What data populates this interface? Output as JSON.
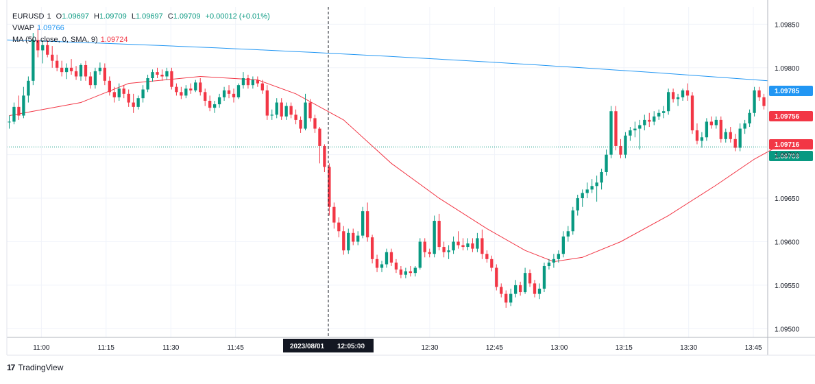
{
  "legend": {
    "symbol": "EURUSD",
    "interval": "1",
    "ohlc": {
      "o_label": "O",
      "o": "1.09697",
      "h_label": "H",
      "h": "1.09709",
      "l_label": "L",
      "l": "1.09697",
      "c_label": "C",
      "c": "1.09709",
      "change": "+0.00012 (+0.01%)"
    },
    "vwap": {
      "label": "VWAP",
      "value": "1.09766"
    },
    "ma": {
      "label": "MA (50, close, 0, SMA, 9)",
      "value": "1.09724"
    }
  },
  "colors": {
    "up": "#089981",
    "down": "#f23645",
    "vwap": "#2196f3",
    "ma": "#f23645",
    "grid": "#f0f3fa",
    "axis_text": "#131722"
  },
  "price_tags": {
    "vwap": {
      "value": "1.09785",
      "color": "#2196f3"
    },
    "last_red": {
      "value": "1.09756",
      "color": "#f23645"
    },
    "ma": {
      "value": "1.09716",
      "color": "#f23645"
    },
    "last": {
      "value": "1.09709",
      "color": "#089981"
    }
  },
  "crosshair": {
    "date_label": "2023/08/01",
    "time_label": "12:05:00"
  },
  "footer": {
    "brand": "TradingView",
    "logo_glyph": "17"
  },
  "chart_data": {
    "type": "candlestick",
    "x_axis": {
      "ticks": [
        "11:00",
        "11:15",
        "11:30",
        "11:45",
        "12:15",
        "12:30",
        "12:45",
        "13:00",
        "13:15",
        "13:30",
        "13:45"
      ]
    },
    "y_axis": {
      "ticks": [
        "1.09850",
        "1.09800",
        "1.09700",
        "1.09650",
        "1.09600",
        "1.09550",
        "1.09500"
      ],
      "range": [
        1.0949,
        1.0987
      ]
    },
    "candles": [
      [
        1.09738,
        1.09745,
        1.0973,
        1.09738
      ],
      [
        1.09738,
        1.0976,
        1.09735,
        1.09755
      ],
      [
        1.09755,
        1.09768,
        1.0974,
        1.09745
      ],
      [
        1.09745,
        1.09778,
        1.09742,
        1.09768
      ],
      [
        1.09768,
        1.0979,
        1.0976,
        1.09785
      ],
      [
        1.09785,
        1.0984,
        1.0978,
        1.09832
      ],
      [
        1.09832,
        1.09845,
        1.09812,
        1.0982
      ],
      [
        1.0982,
        1.09832,
        1.09805,
        1.09826
      ],
      [
        1.09826,
        1.09832,
        1.09812,
        1.09815
      ],
      [
        1.09815,
        1.09825,
        1.098,
        1.09808
      ],
      [
        1.09808,
        1.09815,
        1.09796,
        1.098
      ],
      [
        1.098,
        1.09808,
        1.0979,
        1.09795
      ],
      [
        1.09795,
        1.09805,
        1.09787,
        1.098
      ],
      [
        1.098,
        1.0981,
        1.09792,
        1.09796
      ],
      [
        1.09796,
        1.09802,
        1.09786,
        1.0979
      ],
      [
        1.0979,
        1.09805,
        1.09785,
        1.09803
      ],
      [
        1.09803,
        1.09808,
        1.09785,
        1.0979
      ],
      [
        1.0979,
        1.09795,
        1.09776,
        1.0978
      ],
      [
        1.0978,
        1.098,
        1.09776,
        1.09796
      ],
      [
        1.09796,
        1.09806,
        1.09792,
        1.098
      ],
      [
        1.098,
        1.09805,
        1.0978,
        1.09785
      ],
      [
        1.09785,
        1.0979,
        1.09768,
        1.09772
      ],
      [
        1.09772,
        1.09778,
        1.0976,
        1.09766
      ],
      [
        1.09766,
        1.09782,
        1.09762,
        1.09776
      ],
      [
        1.09776,
        1.0978,
        1.09765,
        1.0977
      ],
      [
        1.0977,
        1.09775,
        1.09755,
        1.0976
      ],
      [
        1.0976,
        1.0977,
        1.09748,
        1.09755
      ],
      [
        1.09755,
        1.09768,
        1.09752,
        1.09765
      ],
      [
        1.09765,
        1.0978,
        1.0976,
        1.09775
      ],
      [
        1.09775,
        1.09792,
        1.09772,
        1.09788
      ],
      [
        1.09788,
        1.09798,
        1.09784,
        1.09795
      ],
      [
        1.09795,
        1.098,
        1.09788,
        1.09792
      ],
      [
        1.09792,
        1.09798,
        1.09785,
        1.0979
      ],
      [
        1.0979,
        1.098,
        1.09786,
        1.09796
      ],
      [
        1.09796,
        1.098,
        1.09775,
        1.09778
      ],
      [
        1.09778,
        1.09782,
        1.09768,
        1.09772
      ],
      [
        1.09772,
        1.09778,
        1.09764,
        1.09768
      ],
      [
        1.09768,
        1.0978,
        1.09765,
        1.09776
      ],
      [
        1.09776,
        1.09782,
        1.0977,
        1.09774
      ],
      [
        1.09774,
        1.09786,
        1.09772,
        1.09783
      ],
      [
        1.09783,
        1.09788,
        1.09768,
        1.09772
      ],
      [
        1.09772,
        1.09776,
        1.09756,
        1.09762
      ],
      [
        1.09762,
        1.09768,
        1.0975,
        1.09754
      ],
      [
        1.09754,
        1.09762,
        1.09748,
        1.09758
      ],
      [
        1.09758,
        1.0977,
        1.09754,
        1.09766
      ],
      [
        1.09766,
        1.09778,
        1.09762,
        1.09774
      ],
      [
        1.09774,
        1.0978,
        1.09765,
        1.0977
      ],
      [
        1.0977,
        1.09776,
        1.0976,
        1.09766
      ],
      [
        1.09766,
        1.09782,
        1.09764,
        1.0978
      ],
      [
        1.0978,
        1.09795,
        1.09776,
        1.09788
      ],
      [
        1.09788,
        1.09792,
        1.09776,
        1.0978
      ],
      [
        1.0978,
        1.0979,
        1.09776,
        1.09786
      ],
      [
        1.09786,
        1.0979,
        1.09778,
        1.09782
      ],
      [
        1.09782,
        1.09786,
        1.0977,
        1.09774
      ],
      [
        1.09774,
        1.0978,
        1.0974,
        1.09745
      ],
      [
        1.09745,
        1.09752,
        1.0974,
        1.09746
      ],
      [
        1.09746,
        1.09765,
        1.09742,
        1.0976
      ],
      [
        1.0976,
        1.09765,
        1.0974,
        1.09744
      ],
      [
        1.09744,
        1.0976,
        1.0974,
        1.09756
      ],
      [
        1.09756,
        1.0976,
        1.09742,
        1.09746
      ],
      [
        1.09746,
        1.09752,
        1.09735,
        1.0974
      ],
      [
        1.0974,
        1.09744,
        1.09725,
        1.0973
      ],
      [
        1.0973,
        1.0977,
        1.09728,
        1.0976
      ],
      [
        1.0976,
        1.09764,
        1.09738,
        1.09742
      ],
      [
        1.09742,
        1.09746,
        1.09725,
        1.0973
      ],
      [
        1.0973,
        1.09732,
        1.0969,
        1.0971
      ],
      [
        1.0971,
        1.09712,
        1.0968,
        1.09686
      ],
      [
        1.09686,
        1.0969,
        1.0963,
        1.0964
      ],
      [
        1.0964,
        1.09645,
        1.09615,
        1.09622
      ],
      [
        1.09622,
        1.09628,
        1.09605,
        1.09612
      ],
      [
        1.09612,
        1.09618,
        1.09585,
        1.0959
      ],
      [
        1.0959,
        1.09615,
        1.09586,
        1.0961
      ],
      [
        1.0961,
        1.09615,
        1.09596,
        1.096
      ],
      [
        1.096,
        1.09612,
        1.09596,
        1.09607
      ],
      [
        1.09607,
        1.0964,
        1.09604,
        1.09635
      ],
      [
        1.09635,
        1.09645,
        1.096,
        1.09605
      ],
      [
        1.09605,
        1.09608,
        1.09575,
        1.0958
      ],
      [
        1.0958,
        1.09585,
        1.09565,
        1.0957
      ],
      [
        1.0957,
        1.09578,
        1.09565,
        1.09574
      ],
      [
        1.09574,
        1.09592,
        1.0957,
        1.09588
      ],
      [
        1.09588,
        1.09592,
        1.09572,
        1.09576
      ],
      [
        1.09576,
        1.0958,
        1.09564,
        1.09568
      ],
      [
        1.09568,
        1.09572,
        1.09558,
        1.09562
      ],
      [
        1.09562,
        1.0957,
        1.09558,
        1.09566
      ],
      [
        1.09566,
        1.09572,
        1.0956,
        1.09564
      ],
      [
        1.09564,
        1.09572,
        1.0956,
        1.0957
      ],
      [
        1.0957,
        1.09604,
        1.09568,
        1.096
      ],
      [
        1.096,
        1.09604,
        1.09582,
        1.09588
      ],
      [
        1.09588,
        1.09592,
        1.09582,
        1.09586
      ],
      [
        1.09586,
        1.0963,
        1.09582,
        1.09624
      ],
      [
        1.09624,
        1.09632,
        1.0959,
        1.09594
      ],
      [
        1.09594,
        1.096,
        1.09582,
        1.09588
      ],
      [
        1.09588,
        1.09596,
        1.0958,
        1.0959
      ],
      [
        1.0959,
        1.09606,
        1.09586,
        1.096
      ],
      [
        1.096,
        1.09612,
        1.09592,
        1.09596
      ],
      [
        1.09596,
        1.09604,
        1.0959,
        1.09594
      ],
      [
        1.09594,
        1.09604,
        1.0959,
        1.09598
      ],
      [
        1.09598,
        1.09604,
        1.09588,
        1.09592
      ],
      [
        1.09592,
        1.0961,
        1.09588,
        1.09604
      ],
      [
        1.09604,
        1.09614,
        1.0958,
        1.09586
      ],
      [
        1.09586,
        1.0959,
        1.09576,
        1.0958
      ],
      [
        1.0958,
        1.09584,
        1.09566,
        1.0957
      ],
      [
        1.0957,
        1.09574,
        1.09544,
        1.09548
      ],
      [
        1.09548,
        1.09552,
        1.09536,
        1.0954
      ],
      [
        1.0954,
        1.09544,
        1.09524,
        1.0953
      ],
      [
        1.0953,
        1.09546,
        1.09526,
        1.0954
      ],
      [
        1.0954,
        1.09556,
        1.09536,
        1.0955
      ],
      [
        1.0955,
        1.09554,
        1.09538,
        1.09542
      ],
      [
        1.09542,
        1.0957,
        1.0954,
        1.09564
      ],
      [
        1.09564,
        1.09568,
        1.09548,
        1.09552
      ],
      [
        1.09552,
        1.09556,
        1.09536,
        1.0954
      ],
      [
        1.0954,
        1.09552,
        1.09534,
        1.09546
      ],
      [
        1.09546,
        1.09576,
        1.09542,
        1.09572
      ],
      [
        1.09572,
        1.0958,
        1.09568,
        1.09576
      ],
      [
        1.09576,
        1.09586,
        1.0957,
        1.0958
      ],
      [
        1.0958,
        1.0959,
        1.09576,
        1.09586
      ],
      [
        1.09586,
        1.09612,
        1.09582,
        1.09606
      ],
      [
        1.09606,
        1.09618,
        1.096,
        1.09612
      ],
      [
        1.09612,
        1.0964,
        1.09608,
        1.09636
      ],
      [
        1.09636,
        1.09654,
        1.0963,
        1.0965
      ],
      [
        1.0965,
        1.0966,
        1.0964,
        1.09656
      ],
      [
        1.09656,
        1.09668,
        1.0965,
        1.0966
      ],
      [
        1.0966,
        1.09672,
        1.09656,
        1.09664
      ],
      [
        1.09664,
        1.09676,
        1.09646,
        1.09668
      ],
      [
        1.09668,
        1.09684,
        1.0966,
        1.0968
      ],
      [
        1.0968,
        1.09706,
        1.09676,
        1.097
      ],
      [
        1.097,
        1.09756,
        1.09696,
        1.0975
      ],
      [
        1.0975,
        1.09756,
        1.09705,
        1.0971
      ],
      [
        1.0971,
        1.09718,
        1.09696,
        1.097
      ],
      [
        1.097,
        1.09726,
        1.09696,
        1.09722
      ],
      [
        1.09722,
        1.09732,
        1.09716,
        1.09728
      ],
      [
        1.09728,
        1.09738,
        1.0972,
        1.0973
      ],
      [
        1.0973,
        1.0974,
        1.09706,
        1.09734
      ],
      [
        1.09734,
        1.09746,
        1.09728,
        1.0974
      ],
      [
        1.0974,
        1.09748,
        1.09732,
        1.09738
      ],
      [
        1.09738,
        1.0975,
        1.09734,
        1.09744
      ],
      [
        1.09744,
        1.09752,
        1.0974,
        1.09748
      ],
      [
        1.09748,
        1.09756,
        1.09742,
        1.0975
      ],
      [
        1.0975,
        1.09776,
        1.09746,
        1.09772
      ],
      [
        1.09772,
        1.09776,
        1.0976,
        1.09764
      ],
      [
        1.09764,
        1.0977,
        1.09756,
        1.09766
      ],
      [
        1.09766,
        1.09776,
        1.09762,
        1.09774
      ],
      [
        1.09774,
        1.09782,
        1.09762,
        1.09768
      ],
      [
        1.09768,
        1.09772,
        1.09724,
        1.09728
      ],
      [
        1.09728,
        1.09736,
        1.09712,
        1.09716
      ],
      [
        1.09716,
        1.09726,
        1.09708,
        1.0972
      ],
      [
        1.0972,
        1.09742,
        1.09716,
        1.09738
      ],
      [
        1.09738,
        1.09744,
        1.0973,
        1.09734
      ],
      [
        1.09734,
        1.09744,
        1.0973,
        1.0974
      ],
      [
        1.0974,
        1.09744,
        1.09714,
        1.09718
      ],
      [
        1.09718,
        1.0973,
        1.09714,
        1.09726
      ],
      [
        1.09726,
        1.09732,
        1.09714,
        1.09718
      ],
      [
        1.09718,
        1.09724,
        1.09704,
        1.09708
      ],
      [
        1.09708,
        1.09736,
        1.09704,
        1.0973
      ],
      [
        1.0973,
        1.0974,
        1.09724,
        1.09736
      ],
      [
        1.09736,
        1.09752,
        1.09732,
        1.09748
      ],
      [
        1.09748,
        1.09778,
        1.09744,
        1.09774
      ],
      [
        1.09774,
        1.09778,
        1.09762,
        1.09766
      ],
      [
        1.09766,
        1.0977,
        1.09752,
        1.09756
      ]
    ],
    "vwap_line": {
      "start": 1.09832,
      "end": 1.09785
    },
    "ma_line": [
      [
        0,
        1.09745
      ],
      [
        15,
        1.0976
      ],
      [
        25,
        1.09782
      ],
      [
        40,
        1.0979
      ],
      [
        52,
        1.09786
      ],
      [
        60,
        1.0977
      ],
      [
        70,
        1.0974
      ],
      [
        80,
        1.0969
      ],
      [
        90,
        1.0965
      ],
      [
        100,
        1.09615
      ],
      [
        108,
        1.0959
      ],
      [
        114,
        1.09577
      ],
      [
        120,
        1.09582
      ],
      [
        128,
        1.096
      ],
      [
        138,
        1.0963
      ],
      [
        148,
        1.09665
      ],
      [
        156,
        1.09695
      ],
      [
        163,
        1.09716
      ]
    ]
  }
}
